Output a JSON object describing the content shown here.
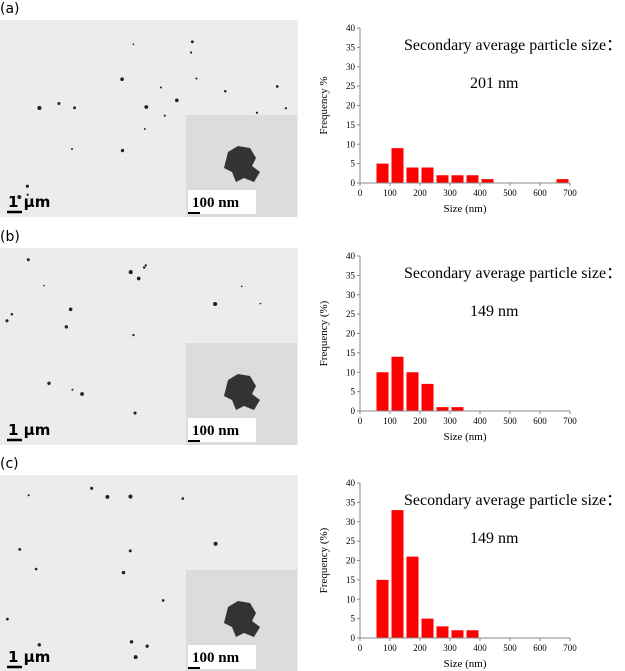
{
  "panels": [
    {
      "label": "(a)",
      "scale_bar": "1 µm",
      "inset_scale_bar": "100 nm"
    },
    {
      "label": "(b)",
      "scale_bar": "1 µm",
      "inset_scale_bar": "100 nm"
    },
    {
      "label": "(c)",
      "scale_bar": "1 µm",
      "inset_scale_bar": "100 nm"
    }
  ],
  "chart_data": [
    {
      "type": "histogram",
      "annotations": [
        "Secondary average particle size：",
        "201 nm"
      ],
      "x_label": "Size (nm)",
      "y_label": "Frequency %",
      "color": "#ff0000",
      "bins": [
        50,
        100,
        150,
        200,
        250,
        300,
        350,
        400,
        450,
        500,
        550,
        600,
        650,
        700
      ],
      "values": [
        5,
        9,
        4,
        4,
        2,
        2,
        2,
        1,
        0,
        0,
        0,
        0,
        1
      ],
      "xlim": [
        0,
        700
      ],
      "xticks": [
        0,
        100,
        200,
        300,
        400,
        500,
        600,
        700
      ],
      "ylim": [
        0,
        40
      ],
      "yticks": [
        0,
        5,
        10,
        15,
        20,
        25,
        30,
        35,
        40
      ]
    },
    {
      "type": "histogram",
      "annotations": [
        "Secondary average particle size：",
        "149 nm"
      ],
      "x_label": "Size (nm)",
      "y_label": "Frequency (%)",
      "color": "#ff0000",
      "bins": [
        50,
        100,
        150,
        200,
        250,
        300,
        350
      ],
      "values": [
        10,
        14,
        10,
        7,
        1,
        1
      ],
      "xlim": [
        0,
        700
      ],
      "xticks": [
        0,
        100,
        200,
        300,
        400,
        500,
        600,
        700
      ],
      "ylim": [
        0,
        40
      ],
      "yticks": [
        0,
        5,
        10,
        15,
        20,
        25,
        30,
        35,
        40
      ]
    },
    {
      "type": "histogram",
      "annotations": [
        "Secondary average particle size：",
        "149 nm"
      ],
      "x_label": "Size (nm)",
      "y_label": "Frequency (%)",
      "color": "#ff0000",
      "bins": [
        50,
        100,
        150,
        200,
        250,
        300,
        350,
        400
      ],
      "values": [
        15,
        33,
        21,
        5,
        3,
        2,
        2
      ],
      "xlim": [
        0,
        700
      ],
      "xticks": [
        0,
        100,
        200,
        300,
        400,
        500,
        600,
        700
      ],
      "ylim": [
        0,
        40
      ],
      "yticks": [
        0,
        5,
        10,
        15,
        20,
        25,
        30,
        35,
        40
      ]
    }
  ]
}
